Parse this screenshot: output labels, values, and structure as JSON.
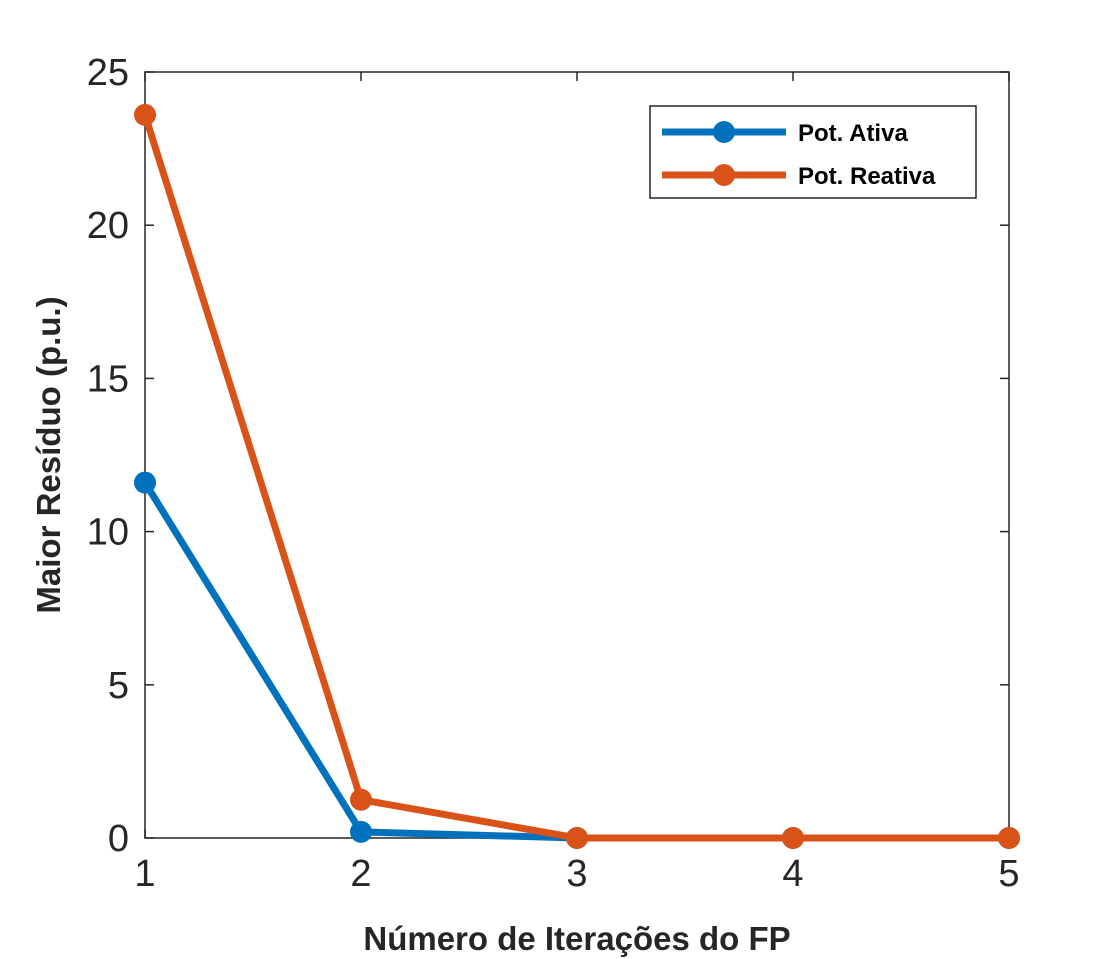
{
  "chart_data": {
    "type": "line",
    "title": "",
    "xlabel": "Número de Iterações do FP",
    "ylabel": "Maior Resíduo (p.u.)",
    "x": [
      1,
      2,
      3,
      4,
      5
    ],
    "xlim": [
      1,
      5
    ],
    "ylim": [
      0,
      25
    ],
    "xticks": [
      "1",
      "2",
      "3",
      "4",
      "5"
    ],
    "yticks": [
      "0",
      "5",
      "10",
      "15",
      "20",
      "25"
    ],
    "grid": false,
    "legend_position": "top-right",
    "series": [
      {
        "name": "Pot. Ativa",
        "color": "#0072BD",
        "values": [
          11.6,
          0.2,
          0.0,
          0.0,
          0.0
        ]
      },
      {
        "name": "Pot. Reativa",
        "color": "#D95319",
        "values": [
          23.6,
          1.25,
          0.0,
          0.0,
          0.0
        ]
      }
    ]
  }
}
